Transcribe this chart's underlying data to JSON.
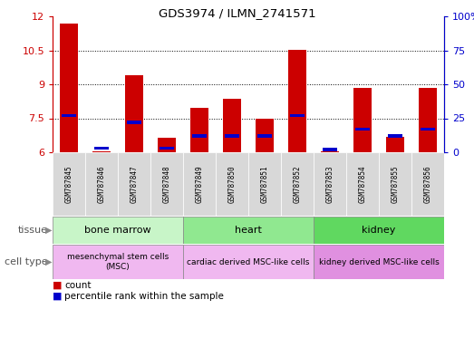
{
  "title": "GDS3974 / ILMN_2741571",
  "samples": [
    "GSM787845",
    "GSM787846",
    "GSM787847",
    "GSM787848",
    "GSM787849",
    "GSM787850",
    "GSM787851",
    "GSM787852",
    "GSM787853",
    "GSM787854",
    "GSM787855",
    "GSM787856"
  ],
  "count_values": [
    11.7,
    6.05,
    9.4,
    6.65,
    7.95,
    8.35,
    7.5,
    10.52,
    6.05,
    8.85,
    6.7,
    8.85
  ],
  "percentile_values": [
    27,
    3,
    22,
    3,
    12,
    12,
    12,
    27,
    2,
    17,
    12,
    17
  ],
  "ymin": 6,
  "ymax": 12,
  "yticks": [
    6,
    7.5,
    9,
    10.5,
    12
  ],
  "ytick_labels": [
    "6",
    "7.5",
    "9",
    "10.5",
    "12"
  ],
  "y2min": 0,
  "y2max": 100,
  "y2ticks": [
    0,
    25,
    50,
    75,
    100
  ],
  "y2tick_labels": [
    "0",
    "25",
    "50",
    "75",
    "100%"
  ],
  "tissue_groups": [
    {
      "label": "bone marrow",
      "start": 0,
      "end": 4,
      "color": "#c8f5c8"
    },
    {
      "label": "heart",
      "start": 4,
      "end": 8,
      "color": "#90e890"
    },
    {
      "label": "kidney",
      "start": 8,
      "end": 12,
      "color": "#60d860"
    }
  ],
  "cell_type_groups": [
    {
      "label": "mesenchymal stem cells\n(MSC)",
      "start": 0,
      "end": 4,
      "color": "#f0b8f0"
    },
    {
      "label": "cardiac derived MSC-like cells",
      "start": 4,
      "end": 8,
      "color": "#f0b8f0"
    },
    {
      "label": "kidney derived MSC-like cells",
      "start": 8,
      "end": 12,
      "color": "#e090e0"
    }
  ],
  "bar_color_red": "#cc0000",
  "bar_color_blue": "#0000cc",
  "bar_width": 0.55,
  "count_label": "count",
  "percentile_label": "percentile rank within the sample",
  "tissue_label": "tissue",
  "cell_type_label": "cell type",
  "bg_color": "#d8d8d8"
}
